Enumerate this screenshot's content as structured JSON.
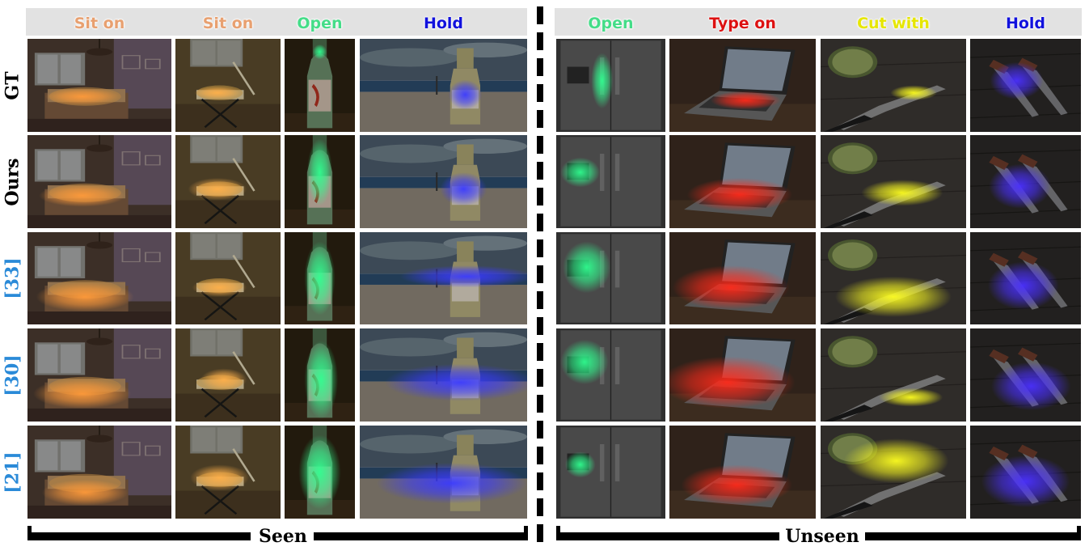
{
  "column_headers": [
    {
      "label": "Sit on",
      "color": "#e8a070"
    },
    {
      "label": "Sit on",
      "color": "#e8a070"
    },
    {
      "label": "Open",
      "color": "#44dd88"
    },
    {
      "label": "Hold",
      "color": "#1111dd"
    },
    {
      "label": "Open",
      "color": "#44dd88"
    },
    {
      "label": "Type on",
      "color": "#dd1111"
    },
    {
      "label": "Cut with",
      "color": "#e6e600"
    },
    {
      "label": "Hold",
      "color": "#1111dd"
    }
  ],
  "row_labels": [
    {
      "label": "GT",
      "color": "#000000"
    },
    {
      "label": "Ours",
      "color": "#000000"
    },
    {
      "label": "[33]",
      "color": "#2a8ad8"
    },
    {
      "label": "[30]",
      "color": "#2a8ad8"
    },
    {
      "label": "[21]",
      "color": "#2a8ad8"
    }
  ],
  "image_scenes": [
    "bedroom",
    "folding-chair",
    "bottle",
    "beach-bottle",
    "refrigerator",
    "laptop",
    "knife-lime",
    "knives"
  ],
  "footer": {
    "seen_label": "Seen",
    "unseen_label": "Unseen"
  }
}
